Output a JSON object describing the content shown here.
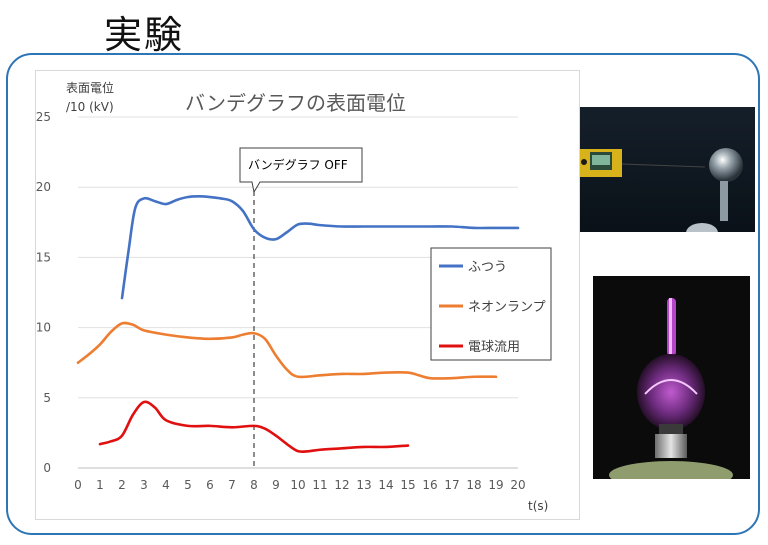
{
  "slide": {
    "title": "実験"
  },
  "chart_data": {
    "type": "line",
    "title": "バンデグラフの表面電位",
    "ylabel_line1": "表面電位",
    "ylabel_line2": "/10 (kV)",
    "xlabel": "t(s)",
    "xlim": [
      0,
      20
    ],
    "ylim": [
      0,
      25
    ],
    "xticks": [
      "0",
      "1",
      "2",
      "3",
      "4",
      "5",
      "6",
      "7",
      "8",
      "9",
      "10",
      "11",
      "12",
      "13",
      "14",
      "15",
      "16",
      "17",
      "18",
      "19",
      "20"
    ],
    "yticks": [
      "0",
      "5",
      "10",
      "15",
      "20",
      "25"
    ],
    "grid": "horizontal",
    "legend_position": "right",
    "annotation": {
      "text": "バンデグラフ OFF",
      "x": 8
    },
    "series": [
      {
        "name": "ふつう",
        "color": "#4472c4",
        "points": [
          [
            2,
            12.1
          ],
          [
            2.3,
            15.5
          ],
          [
            2.6,
            18.5
          ],
          [
            3,
            19.2
          ],
          [
            3.5,
            19.0
          ],
          [
            4,
            18.8
          ],
          [
            4.5,
            19.1
          ],
          [
            5,
            19.3
          ],
          [
            5.5,
            19.35
          ],
          [
            6,
            19.3
          ],
          [
            6.5,
            19.2
          ],
          [
            7,
            19.0
          ],
          [
            7.5,
            18.3
          ],
          [
            8,
            17.0
          ],
          [
            8.5,
            16.4
          ],
          [
            9,
            16.3
          ],
          [
            9.5,
            16.8
          ],
          [
            10,
            17.35
          ],
          [
            10.5,
            17.4
          ],
          [
            11,
            17.3
          ],
          [
            12,
            17.2
          ],
          [
            13,
            17.2
          ],
          [
            14,
            17.2
          ],
          [
            15,
            17.2
          ],
          [
            16,
            17.2
          ],
          [
            17,
            17.2
          ],
          [
            18,
            17.1
          ],
          [
            19,
            17.1
          ],
          [
            20,
            17.1
          ]
        ]
      },
      {
        "name": "ネオンランプ",
        "color": "#ed7d31",
        "points": [
          [
            0,
            7.5
          ],
          [
            0.5,
            8.1
          ],
          [
            1,
            8.8
          ],
          [
            1.5,
            9.7
          ],
          [
            2,
            10.3
          ],
          [
            2.5,
            10.2
          ],
          [
            3,
            9.8
          ],
          [
            4,
            9.5
          ],
          [
            5,
            9.3
          ],
          [
            6,
            9.2
          ],
          [
            7,
            9.3
          ],
          [
            7.5,
            9.5
          ],
          [
            8,
            9.6
          ],
          [
            8.5,
            9.2
          ],
          [
            9,
            8.0
          ],
          [
            9.5,
            7.0
          ],
          [
            10,
            6.5
          ],
          [
            11,
            6.6
          ],
          [
            12,
            6.7
          ],
          [
            13,
            6.7
          ],
          [
            14,
            6.8
          ],
          [
            15,
            6.8
          ],
          [
            15.5,
            6.6
          ],
          [
            16,
            6.4
          ],
          [
            17,
            6.4
          ],
          [
            18,
            6.5
          ],
          [
            19,
            6.5
          ]
        ]
      },
      {
        "name": "電球流用",
        "color": "#e01010",
        "points": [
          [
            1,
            1.7
          ],
          [
            1.5,
            1.9
          ],
          [
            2,
            2.3
          ],
          [
            2.5,
            3.8
          ],
          [
            3,
            4.7
          ],
          [
            3.5,
            4.3
          ],
          [
            4,
            3.4
          ],
          [
            5,
            3.0
          ],
          [
            6,
            3.0
          ],
          [
            7,
            2.9
          ],
          [
            8,
            3.0
          ],
          [
            8.5,
            2.8
          ],
          [
            9,
            2.3
          ],
          [
            9.5,
            1.7
          ],
          [
            10,
            1.2
          ],
          [
            10.5,
            1.2
          ],
          [
            11,
            1.3
          ],
          [
            12,
            1.4
          ],
          [
            13,
            1.5
          ],
          [
            14,
            1.5
          ],
          [
            15,
            1.6
          ]
        ]
      }
    ]
  },
  "images": [
    {
      "icon": "van-de-graaff-photo"
    },
    {
      "icon": "neon-lamp-photo"
    }
  ]
}
